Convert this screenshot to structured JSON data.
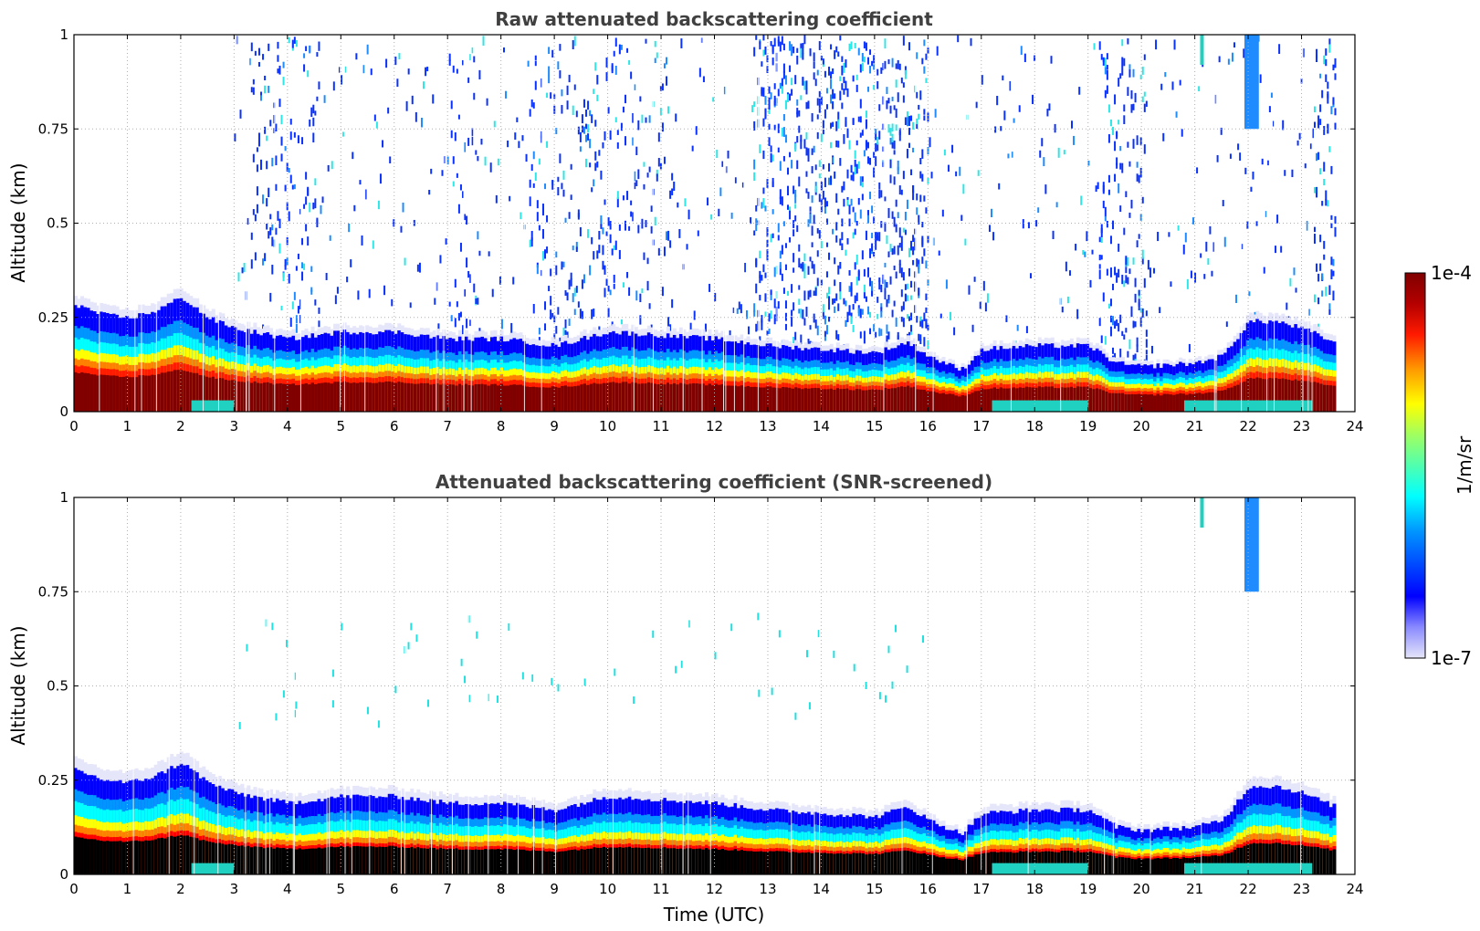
{
  "chart_data": [
    {
      "type": "heatmap",
      "title": "Raw attenuated backscattering coefficient",
      "xlabel": "",
      "ylabel": "Altitude (km)",
      "xlim": [
        0,
        24
      ],
      "ylim": [
        0,
        1
      ],
      "x_ticks": [
        "0",
        "1",
        "2",
        "3",
        "4",
        "5",
        "6",
        "7",
        "8",
        "9",
        "10",
        "11",
        "12",
        "13",
        "14",
        "15",
        "16",
        "17",
        "18",
        "19",
        "20",
        "21",
        "22",
        "23",
        "24"
      ],
      "y_ticks": [
        "0",
        "0.25",
        "0.5",
        "0.75",
        "1"
      ],
      "grid": true,
      "screened": false,
      "layer_top_km": {
        "x": [
          0,
          0.5,
          1,
          1.5,
          2,
          2.5,
          3,
          4,
          5,
          6,
          7,
          8,
          9,
          10,
          11,
          12,
          13,
          14,
          15,
          15.6,
          16,
          16.6,
          17,
          18,
          19,
          19.5,
          20,
          21,
          21.5,
          22,
          22.5,
          23,
          23.6
        ],
        "y": [
          0.31,
          0.28,
          0.27,
          0.29,
          0.33,
          0.27,
          0.24,
          0.21,
          0.23,
          0.23,
          0.21,
          0.21,
          0.19,
          0.23,
          0.22,
          0.21,
          0.19,
          0.18,
          0.17,
          0.2,
          0.16,
          0.12,
          0.18,
          0.19,
          0.19,
          0.14,
          0.13,
          0.14,
          0.16,
          0.26,
          0.26,
          0.24,
          0.2
        ]
      }
    },
    {
      "type": "heatmap",
      "title": "Attenuated backscattering coefficient (SNR-screened)",
      "xlabel": "Time (UTC)",
      "ylabel": "Altitude (km)",
      "xlim": [
        0,
        24
      ],
      "ylim": [
        0,
        1
      ],
      "x_ticks": [
        "0",
        "1",
        "2",
        "3",
        "4",
        "5",
        "6",
        "7",
        "8",
        "9",
        "10",
        "11",
        "12",
        "13",
        "14",
        "15",
        "16",
        "17",
        "18",
        "19",
        "20",
        "21",
        "22",
        "23",
        "24"
      ],
      "y_ticks": [
        "0",
        "0.25",
        "0.5",
        "0.75",
        "1"
      ],
      "grid": true,
      "screened": true
    }
  ],
  "colorbar": {
    "label": "1/m/sr",
    "max_label": "1e-4",
    "min_label": "1e-7",
    "scale": "log",
    "range": [
      1e-07,
      0.0001
    ],
    "colormap": [
      "#e6e6fa",
      "#0000ff",
      "#00ffff",
      "#ffff00",
      "#ff8000",
      "#ff0000",
      "#800000"
    ]
  }
}
